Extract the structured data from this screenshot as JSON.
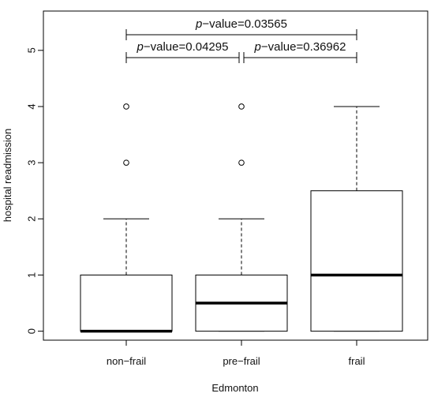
{
  "chart_data": {
    "type": "box",
    "xlabel": "Edmonton",
    "ylabel": "hospital readmission",
    "ylim": [
      -0.16,
      5.7
    ],
    "yticks": [
      0,
      1,
      2,
      3,
      4,
      5
    ],
    "categories": [
      "non−frail",
      "pre−frail",
      "frail"
    ],
    "boxes": [
      {
        "category": "non−frail",
        "q1": 0,
        "median": 0,
        "q3": 1,
        "whisker_low": 0,
        "whisker_high": 2,
        "outliers": [
          3,
          4
        ]
      },
      {
        "category": "pre−frail",
        "q1": 0,
        "median": 0.5,
        "q3": 1,
        "whisker_low": 0,
        "whisker_high": 2,
        "outliers": [
          3,
          4
        ]
      },
      {
        "category": "frail",
        "q1": 0,
        "median": 1,
        "q3": 2.5,
        "whisker_low": 0,
        "whisker_high": 4,
        "outliers": []
      }
    ],
    "comparisons": [
      {
        "from": 0,
        "to": 2,
        "p_label": "p",
        "value_text": "−value=0.03565",
        "tier": "upper"
      },
      {
        "from": 0,
        "to": 1,
        "p_label": "p",
        "value_text": "−value=0.04295",
        "tier": "lower"
      },
      {
        "from": 1,
        "to": 2,
        "p_label": "p",
        "value_text": "−value=0.36962",
        "tier": "lower"
      }
    ],
    "grid": false,
    "legend": "none"
  }
}
